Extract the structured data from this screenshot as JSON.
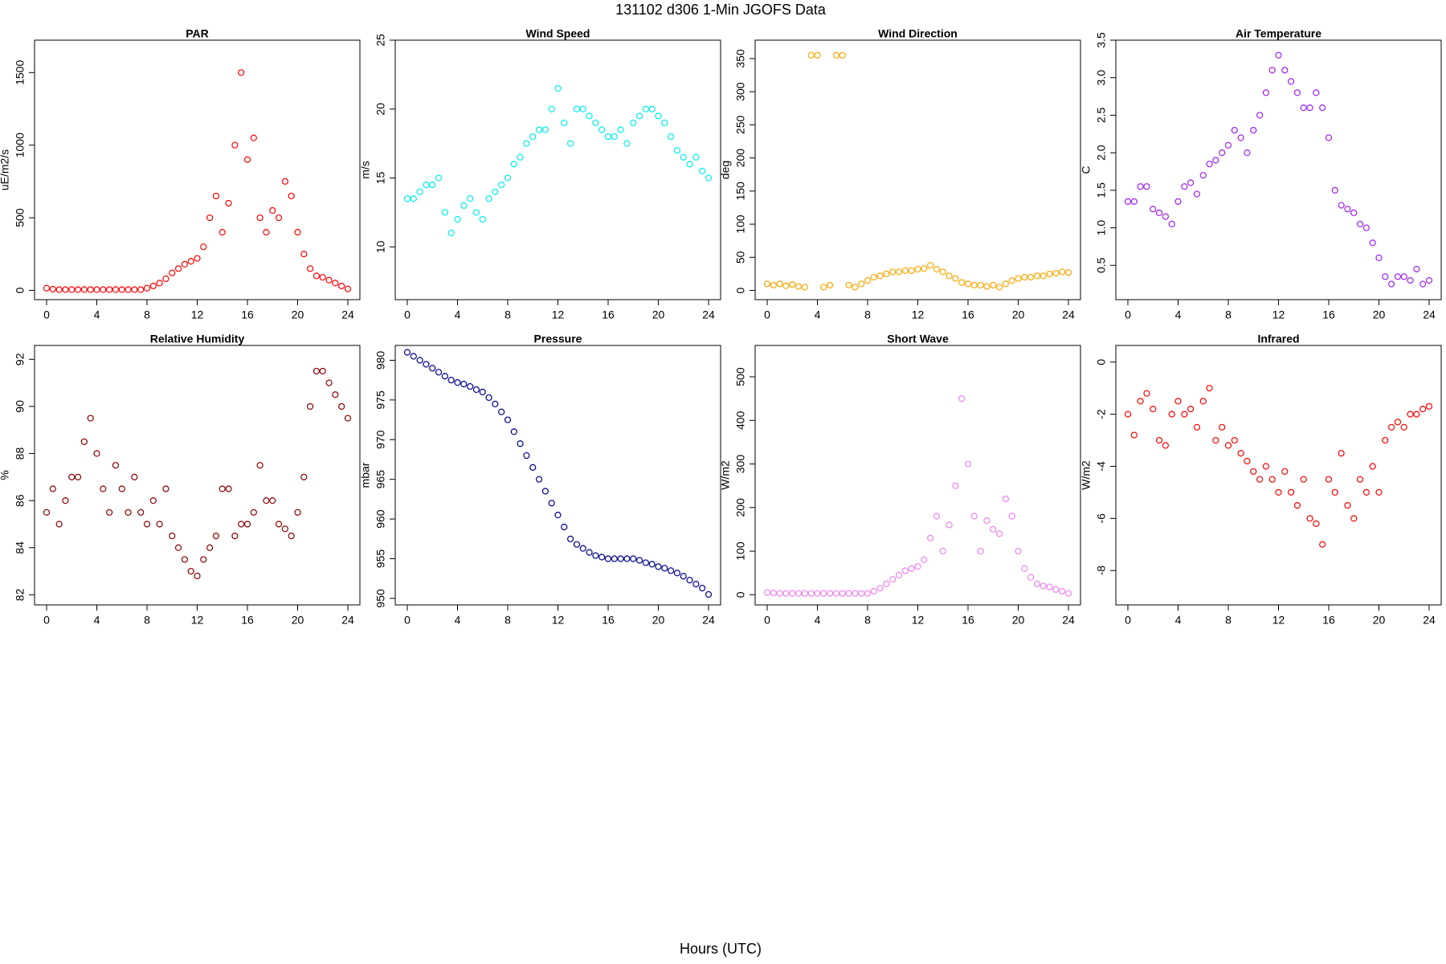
{
  "title": "131102   d306   1-Min  JGOFS Data",
  "xlabel": "Hours (UTC)",
  "chart_data": [
    {
      "type": "scatter",
      "title": "PAR",
      "ylabel": "uE/m2/s",
      "color": "#ff0000",
      "x": [
        0,
        0.5,
        1,
        1.5,
        2,
        2.5,
        3,
        3.5,
        4,
        4.5,
        5,
        5.5,
        6,
        6.5,
        7,
        7.5,
        8,
        8.5,
        9,
        9.5,
        10,
        10.5,
        11,
        11.5,
        12,
        12.5,
        13,
        13.5,
        14,
        14.5,
        15,
        15.5,
        16,
        16.5,
        17,
        17.5,
        18,
        18.5,
        19,
        19.5,
        20,
        20.5,
        21,
        21.5,
        22,
        22.5,
        23,
        23.5,
        24
      ],
      "values": [
        15,
        8,
        5,
        5,
        5,
        5,
        5,
        5,
        5,
        5,
        5,
        5,
        5,
        5,
        5,
        5,
        15,
        30,
        50,
        80,
        120,
        150,
        180,
        200,
        220,
        300,
        500,
        650,
        400,
        600,
        1000,
        1500,
        900,
        1050,
        500,
        400,
        550,
        500,
        750,
        650,
        400,
        250,
        150,
        100,
        90,
        70,
        50,
        30,
        10
      ],
      "xlim": [
        -0.96,
        24.96
      ],
      "ylim": [
        -64,
        1723
      ],
      "xticks": [
        0,
        4,
        8,
        12,
        16,
        20,
        24
      ],
      "yticks": [
        0,
        500,
        1000,
        1500
      ]
    },
    {
      "type": "scatter",
      "title": "Wind Speed",
      "ylabel": "m/s",
      "color": "#00eeee",
      "x": [
        0,
        0.5,
        1,
        1.5,
        2,
        2.5,
        3,
        3.5,
        4,
        4.5,
        5,
        5.5,
        6,
        6.5,
        7,
        7.5,
        8,
        8.5,
        9,
        9.5,
        10,
        10.5,
        11,
        11.5,
        12,
        12.5,
        13,
        13.5,
        14,
        14.5,
        15,
        15.5,
        16,
        16.5,
        17,
        17.5,
        18,
        18.5,
        19,
        19.5,
        20,
        20.5,
        21,
        21.5,
        22,
        22.5,
        23,
        23.5,
        24
      ],
      "values": [
        13.5,
        13.5,
        14,
        14.5,
        14.5,
        15,
        12.5,
        11,
        12,
        13,
        13.5,
        12.5,
        12,
        13.5,
        14,
        14.5,
        15,
        16,
        16.5,
        17.5,
        18,
        18.5,
        18.5,
        20,
        21.5,
        19,
        17.5,
        20,
        20,
        19.5,
        19,
        18.5,
        18,
        18,
        18.5,
        17.5,
        19,
        19.5,
        20,
        20,
        19.5,
        19,
        18,
        17,
        16.5,
        16,
        16.5,
        15.5,
        15
      ],
      "xlim": [
        -0.96,
        24.96
      ],
      "ylim": [
        6.17,
        25
      ],
      "xticks": [
        0,
        4,
        8,
        12,
        16,
        20,
        24
      ],
      "yticks": [
        10,
        15,
        20,
        25
      ]
    },
    {
      "type": "scatter",
      "title": "Wind Direction",
      "ylabel": "deg",
      "color": "#ffa500",
      "x": [
        0,
        0.5,
        1,
        1.5,
        2,
        2.5,
        3,
        3.5,
        4,
        4.5,
        5,
        5.5,
        6,
        6.5,
        7,
        7.5,
        8,
        8.5,
        9,
        9.5,
        10,
        10.5,
        11,
        11.5,
        12,
        12.5,
        13,
        13.5,
        14,
        14.5,
        15,
        15.5,
        16,
        16.5,
        17,
        17.5,
        18,
        18.5,
        19,
        19.5,
        20,
        20.5,
        21,
        21.5,
        22,
        22.5,
        23,
        23.5,
        24
      ],
      "values": [
        10,
        8,
        10,
        7,
        9,
        6,
        5,
        355,
        355,
        5,
        8,
        355,
        355,
        8,
        5,
        10,
        15,
        20,
        22,
        25,
        28,
        28,
        30,
        30,
        32,
        33,
        38,
        32,
        28,
        22,
        18,
        12,
        10,
        8,
        8,
        6,
        8,
        5,
        10,
        15,
        18,
        20,
        20,
        22,
        22,
        25,
        26,
        28,
        27
      ],
      "xlim": [
        -0.96,
        24.96
      ],
      "ylim": [
        -13.9,
        377.8
      ],
      "xticks": [
        0,
        4,
        8,
        12,
        16,
        20,
        24
      ],
      "yticks": [
        0,
        50,
        100,
        150,
        200,
        250,
        300,
        350
      ]
    },
    {
      "type": "scatter",
      "title": "Air Temperature",
      "ylabel": "C",
      "color": "#a020f0",
      "x": [
        0,
        0.5,
        1,
        1.5,
        2,
        2.5,
        3,
        3.5,
        4,
        4.5,
        5,
        5.5,
        6,
        6.5,
        7,
        7.5,
        8,
        8.5,
        9,
        9.5,
        10,
        10.5,
        11,
        11.5,
        12,
        12.5,
        13,
        13.5,
        14,
        14.5,
        15,
        15.5,
        16,
        16.5,
        17,
        17.5,
        18,
        18.5,
        19,
        19.5,
        20,
        20.5,
        21,
        21.5,
        22,
        22.5,
        23,
        23.5,
        24
      ],
      "values": [
        1.35,
        1.35,
        1.55,
        1.55,
        1.25,
        1.2,
        1.15,
        1.05,
        1.35,
        1.55,
        1.6,
        1.45,
        1.7,
        1.85,
        1.9,
        2.0,
        2.1,
        2.3,
        2.2,
        2.0,
        2.3,
        2.5,
        2.8,
        3.1,
        3.3,
        3.1,
        2.95,
        2.8,
        2.6,
        2.6,
        2.8,
        2.6,
        2.2,
        1.5,
        1.3,
        1.25,
        1.2,
        1.05,
        1.0,
        0.8,
        0.6,
        0.35,
        0.25,
        0.35,
        0.35,
        0.3,
        0.45,
        0.25,
        0.3
      ],
      "xlim": [
        -0.96,
        24.96
      ],
      "ylim": [
        0.043,
        3.5
      ],
      "xticks": [
        0,
        4,
        8,
        12,
        16,
        20,
        24
      ],
      "yticks": [
        0.5,
        {
          "value": 1,
          "label": "1.0"
        },
        1.5,
        {
          "value": 2,
          "label": "2.0"
        },
        2.5,
        {
          "value": 3,
          "label": "3.0"
        },
        3.5
      ]
    },
    {
      "type": "scatter",
      "title": "Relative Humidity",
      "ylabel": "%",
      "color": "#8b0000",
      "x": [
        0,
        0.5,
        1,
        1.5,
        2,
        2.5,
        3,
        3.5,
        4,
        4.5,
        5,
        5.5,
        6,
        6.5,
        7,
        7.5,
        8,
        8.5,
        9,
        9.5,
        10,
        10.5,
        11,
        11.5,
        12,
        12.5,
        13,
        13.5,
        14,
        14.5,
        15,
        15.5,
        16,
        16.5,
        17,
        17.5,
        18,
        18.5,
        19,
        19.5,
        20,
        20.5,
        21,
        21.5,
        22,
        22.5,
        23,
        23.5,
        24
      ],
      "values": [
        85.5,
        86.5,
        85,
        86,
        87,
        87,
        88.5,
        89.5,
        88,
        86.5,
        85.5,
        87.5,
        86.5,
        85.5,
        87,
        85.5,
        85,
        86,
        85,
        86.5,
        84.5,
        84,
        83.5,
        83,
        82.8,
        83.5,
        84,
        84.5,
        86.5,
        86.5,
        84.5,
        85,
        85,
        85.5,
        87.5,
        86,
        86,
        85,
        84.8,
        84.5,
        85.5,
        87,
        90,
        91.5,
        91.5,
        91,
        90.5,
        90,
        89.5
      ],
      "xlim": [
        -0.96,
        24.96
      ],
      "ylim": [
        81.57,
        92.59
      ],
      "xticks": [
        0,
        4,
        8,
        12,
        16,
        20,
        24
      ],
      "yticks": [
        82,
        84,
        86,
        88,
        90,
        92
      ]
    },
    {
      "type": "scatter",
      "title": "Pressure",
      "ylabel": "mbar",
      "color": "#00008b",
      "x": [
        0,
        0.5,
        1,
        1.5,
        2,
        2.5,
        3,
        3.5,
        4,
        4.5,
        5,
        5.5,
        6,
        6.5,
        7,
        7.5,
        8,
        8.5,
        9,
        9.5,
        10,
        10.5,
        11,
        11.5,
        12,
        12.5,
        13,
        13.5,
        14,
        14.5,
        15,
        15.5,
        16,
        16.5,
        17,
        17.5,
        18,
        18.5,
        19,
        19.5,
        20,
        20.5,
        21,
        21.5,
        22,
        22.5,
        23,
        23.5,
        24
      ],
      "values": [
        981,
        980.5,
        980,
        979.5,
        979,
        978.5,
        978,
        977.5,
        977.2,
        977,
        976.7,
        976.3,
        976,
        975.3,
        974.5,
        973.5,
        972.5,
        971,
        969.5,
        968,
        966.5,
        965,
        963.5,
        962,
        960.5,
        959,
        957.5,
        956.8,
        956.3,
        955.8,
        955.4,
        955.2,
        955,
        955,
        955,
        955,
        955,
        954.8,
        954.5,
        954.3,
        954,
        953.8,
        953.5,
        953.2,
        952.8,
        952.3,
        951.8,
        951.3,
        950.5
      ],
      "xlim": [
        -0.96,
        24.96
      ],
      "ylim": [
        949.18,
        981.87
      ],
      "xticks": [
        0,
        4,
        8,
        12,
        16,
        20,
        24
      ],
      "yticks": [
        950,
        955,
        960,
        965,
        970,
        975,
        980
      ]
    },
    {
      "type": "scatter",
      "title": "Short Wave",
      "ylabel": "W/m2",
      "color": "#ee82ee",
      "x": [
        0,
        0.5,
        1,
        1.5,
        2,
        2.5,
        3,
        3.5,
        4,
        4.5,
        5,
        5.5,
        6,
        6.5,
        7,
        7.5,
        8,
        8.5,
        9,
        9.5,
        10,
        10.5,
        11,
        11.5,
        12,
        12.5,
        13,
        13.5,
        14,
        14.5,
        15,
        15.5,
        16,
        16.5,
        17,
        17.5,
        18,
        18.5,
        19,
        19.5,
        20,
        20.5,
        21,
        21.5,
        22,
        22.5,
        23,
        23.5,
        24
      ],
      "values": [
        5,
        4,
        3,
        3,
        3,
        3,
        3,
        3,
        3,
        3,
        3,
        3,
        3,
        3,
        3,
        3,
        3,
        8,
        15,
        25,
        35,
        45,
        55,
        60,
        65,
        80,
        130,
        180,
        100,
        160,
        250,
        450,
        300,
        180,
        100,
        170,
        150,
        140,
        220,
        180,
        100,
        60,
        40,
        25,
        20,
        18,
        12,
        8,
        3
      ],
      "xlim": [
        -0.96,
        24.96
      ],
      "ylim": [
        -23.4,
        572
      ],
      "xticks": [
        0,
        4,
        8,
        12,
        16,
        20,
        24
      ],
      "yticks": [
        0,
        100,
        200,
        300,
        400,
        500
      ]
    },
    {
      "type": "scatter",
      "title": "Infrared",
      "ylabel": "W/m2",
      "color": "#ff0000",
      "x": [
        0,
        0.5,
        1,
        1.5,
        2,
        2.5,
        3,
        3.5,
        4,
        4.5,
        5,
        5.5,
        6,
        6.5,
        7,
        7.5,
        8,
        8.5,
        9,
        9.5,
        10,
        10.5,
        11,
        11.5,
        12,
        12.5,
        13,
        13.5,
        14,
        14.5,
        15,
        15.5,
        16,
        16.5,
        17,
        17.5,
        18,
        18.5,
        19,
        19.5,
        20,
        20.5,
        21,
        21.5,
        22,
        22.5,
        23,
        23.5,
        24
      ],
      "values": [
        -2,
        -2.8,
        -1.5,
        -1.2,
        -1.8,
        -3,
        -3.2,
        -2,
        -1.5,
        -2,
        -1.8,
        -2.5,
        -1.5,
        -1,
        -3,
        -2.5,
        -3.2,
        -3,
        -3.5,
        -3.8,
        -4.2,
        -4.5,
        -4,
        -4.5,
        -5,
        -4.2,
        -5,
        -5.5,
        -4.5,
        -6,
        -6.2,
        -7,
        -4.5,
        -5,
        -3.5,
        -5.5,
        -6,
        -4.5,
        -5,
        -4,
        -5,
        -3,
        -2.5,
        -2.3,
        -2.5,
        -2,
        -2,
        -1.8,
        -1.7
      ],
      "xlim": [
        -0.96,
        24.96
      ],
      "ylim": [
        -9.32,
        0.64
      ],
      "xticks": [
        0,
        4,
        8,
        12,
        16,
        20,
        24
      ],
      "yticks": [
        -8,
        -6,
        -4,
        -2,
        0
      ]
    }
  ]
}
